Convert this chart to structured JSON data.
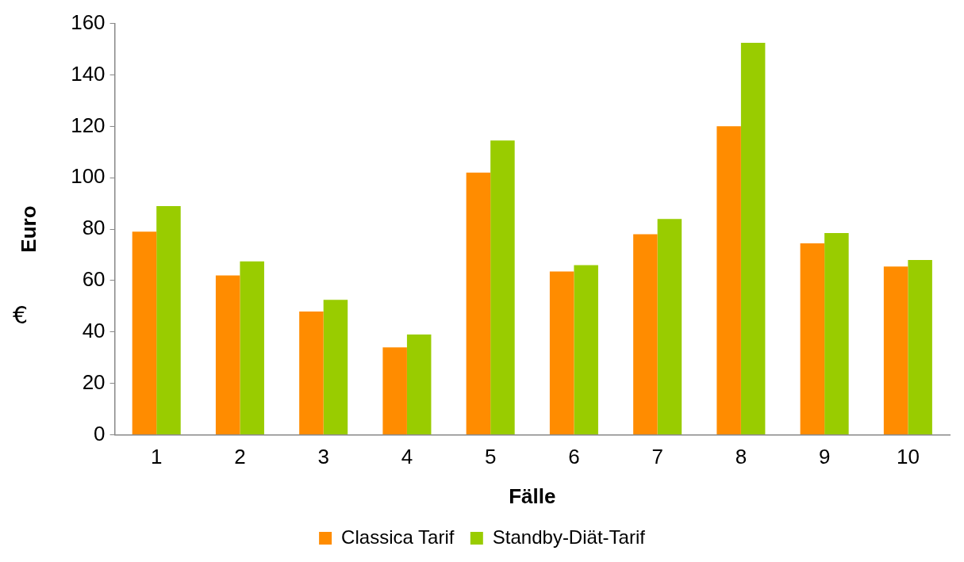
{
  "chart_data": {
    "type": "bar",
    "xlabel": "Fälle",
    "ylabel": "Euro",
    "annotations": [
      "€"
    ],
    "categories": [
      "1",
      "2",
      "3",
      "4",
      "5",
      "6",
      "7",
      "8",
      "9",
      "10"
    ],
    "series": [
      {
        "name": "Classica Tarif",
        "color": "#ff8c00",
        "values": [
          79,
          62,
          48,
          34,
          102,
          63.5,
          78,
          120,
          74.5,
          65.5
        ]
      },
      {
        "name": "Standby-Diät-Tarif",
        "color": "#99cc00",
        "values": [
          89,
          67.5,
          52.5,
          39,
          114.5,
          66,
          84,
          152.5,
          78.5,
          68
        ]
      }
    ],
    "ylim": [
      0,
      160
    ],
    "yticks": [
      0,
      20,
      40,
      60,
      80,
      100,
      120,
      140,
      160
    ],
    "grid": false,
    "legend": "bottom"
  }
}
